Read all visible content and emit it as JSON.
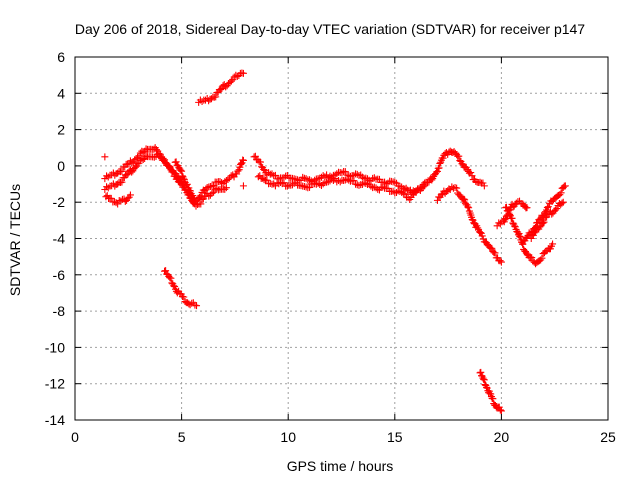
{
  "chart_data": {
    "type": "scatter",
    "title": "Day 206 of 2018, Sidereal Day-to-day VTEC variation (SDTVAR) for receiver p147",
    "xlabel": "GPS time / hours",
    "ylabel": "SDTVAR / TECUs",
    "xlim": [
      0,
      25
    ],
    "ylim": [
      -14,
      6
    ],
    "xticks": [
      0,
      5,
      10,
      15,
      20,
      25
    ],
    "yticks": [
      -14,
      -12,
      -10,
      -8,
      -6,
      -4,
      -2,
      0,
      2,
      4,
      6
    ],
    "grid": true,
    "marker": "+",
    "color": "#ff0000",
    "series": [
      {
        "name": "track-a-upper",
        "points": [
          [
            1.4,
            -0.7
          ],
          [
            1.8,
            -0.5
          ],
          [
            2.2,
            -0.2
          ],
          [
            2.6,
            0.2
          ],
          [
            3.0,
            0.6
          ],
          [
            3.4,
            0.9
          ],
          [
            3.7,
            1.0
          ],
          [
            4.0,
            0.6
          ],
          [
            4.3,
            0.1
          ],
          [
            4.6,
            -0.4
          ],
          [
            4.9,
            -0.9
          ],
          [
            5.2,
            -1.3
          ]
        ]
      },
      {
        "name": "track-a-lower",
        "points": [
          [
            1.4,
            -1.3
          ],
          [
            1.8,
            -1.1
          ],
          [
            2.2,
            -0.8
          ],
          [
            2.6,
            -0.3
          ],
          [
            3.0,
            0.2
          ],
          [
            3.4,
            0.5
          ],
          [
            3.8,
            0.6
          ],
          [
            4.2,
            0.3
          ],
          [
            4.6,
            -0.3
          ],
          [
            5.0,
            -1.0
          ],
          [
            5.3,
            -1.5
          ]
        ]
      },
      {
        "name": "track-a-stub",
        "points": [
          [
            1.45,
            -1.7
          ],
          [
            1.7,
            -1.9
          ],
          [
            2.0,
            -2.0
          ],
          [
            2.3,
            -1.9
          ],
          [
            2.6,
            -1.6
          ]
        ]
      },
      {
        "name": "track-b",
        "points": [
          [
            4.7,
            0.2
          ],
          [
            5.0,
            -0.4
          ],
          [
            5.3,
            -1.2
          ],
          [
            5.6,
            -1.9
          ],
          [
            5.9,
            -1.6
          ],
          [
            6.2,
            -1.2
          ],
          [
            6.5,
            -1.0
          ],
          [
            6.8,
            -0.9
          ],
          [
            7.1,
            -0.8
          ],
          [
            7.4,
            -0.6
          ],
          [
            7.7,
            -0.2
          ],
          [
            7.9,
            0.3
          ]
        ]
      },
      {
        "name": "track-b2",
        "points": [
          [
            5.3,
            -1.6
          ],
          [
            5.6,
            -2.2
          ],
          [
            5.9,
            -2.0
          ],
          [
            6.2,
            -1.6
          ],
          [
            6.5,
            -1.4
          ],
          [
            6.8,
            -1.3
          ],
          [
            7.1,
            -1.2
          ]
        ]
      },
      {
        "name": "track-c",
        "points": [
          [
            5.8,
            3.5
          ],
          [
            6.2,
            3.6
          ],
          [
            6.6,
            3.9
          ],
          [
            7.0,
            4.4
          ],
          [
            7.4,
            4.8
          ],
          [
            7.9,
            5.1
          ]
        ]
      },
      {
        "name": "track-d",
        "points": [
          [
            4.2,
            -5.8
          ],
          [
            4.5,
            -6.3
          ],
          [
            4.8,
            -6.9
          ],
          [
            5.1,
            -7.3
          ],
          [
            5.4,
            -7.6
          ],
          [
            5.7,
            -7.7
          ]
        ]
      },
      {
        "name": "track-e",
        "points": [
          [
            8.4,
            0.5
          ],
          [
            8.7,
            0.1
          ],
          [
            9.0,
            -0.4
          ],
          [
            9.4,
            -0.6
          ],
          [
            9.8,
            -0.6
          ],
          [
            10.2,
            -0.7
          ],
          [
            10.6,
            -0.7
          ],
          [
            11.0,
            -0.8
          ],
          [
            11.4,
            -0.7
          ],
          [
            11.8,
            -0.6
          ],
          [
            12.2,
            -0.5
          ],
          [
            12.6,
            -0.4
          ],
          [
            13.0,
            -0.5
          ],
          [
            13.4,
            -0.6
          ],
          [
            13.8,
            -0.7
          ],
          [
            14.2,
            -0.8
          ],
          [
            14.6,
            -0.9
          ],
          [
            15.0,
            -1.0
          ],
          [
            15.4,
            -1.2
          ],
          [
            15.8,
            -1.5
          ],
          [
            16.2,
            -1.2
          ],
          [
            16.6,
            -0.9
          ],
          [
            17.0,
            -0.2
          ],
          [
            17.3,
            0.5
          ],
          [
            17.6,
            0.9
          ],
          [
            17.9,
            0.6
          ],
          [
            18.2,
            0.1
          ],
          [
            18.5,
            -0.4
          ],
          [
            18.8,
            -0.8
          ],
          [
            19.2,
            -1.1
          ]
        ]
      },
      {
        "name": "track-e-lower",
        "points": [
          [
            8.6,
            -0.6
          ],
          [
            9.0,
            -0.9
          ],
          [
            9.4,
            -1.0
          ],
          [
            9.8,
            -1.0
          ],
          [
            10.2,
            -1.0
          ],
          [
            10.6,
            -1.1
          ],
          [
            11.0,
            -1.1
          ],
          [
            11.4,
            -1.0
          ],
          [
            11.8,
            -0.9
          ],
          [
            12.2,
            -0.8
          ],
          [
            12.6,
            -0.8
          ],
          [
            13.0,
            -0.9
          ],
          [
            13.4,
            -1.0
          ],
          [
            13.8,
            -1.1
          ],
          [
            14.2,
            -1.2
          ],
          [
            14.6,
            -1.3
          ],
          [
            15.0,
            -1.4
          ],
          [
            15.4,
            -1.6
          ],
          [
            15.7,
            -1.8
          ],
          [
            16.0,
            -1.4
          ],
          [
            16.4,
            -1.1
          ]
        ]
      },
      {
        "name": "track-f",
        "points": [
          [
            17.0,
            -1.9
          ],
          [
            17.3,
            -1.5
          ],
          [
            17.6,
            -1.2
          ],
          [
            17.9,
            -1.3
          ],
          [
            18.2,
            -1.8
          ],
          [
            18.5,
            -2.5
          ],
          [
            18.8,
            -3.3
          ],
          [
            19.1,
            -3.9
          ],
          [
            19.4,
            -4.4
          ],
          [
            19.7,
            -4.9
          ],
          [
            20.0,
            -5.3
          ]
        ]
      },
      {
        "name": "track-g",
        "points": [
          [
            19.8,
            -3.3
          ],
          [
            20.1,
            -3.1
          ],
          [
            20.3,
            -2.6
          ],
          [
            20.5,
            -2.2
          ],
          [
            20.7,
            -2.0
          ],
          [
            21.0,
            -2.1
          ],
          [
            21.2,
            -2.3
          ]
        ]
      },
      {
        "name": "track-h",
        "points": [
          [
            20.2,
            -2.3
          ],
          [
            20.5,
            -3.0
          ],
          [
            20.8,
            -3.7
          ],
          [
            21.0,
            -4.4
          ],
          [
            21.3,
            -5.0
          ],
          [
            21.6,
            -5.4
          ],
          [
            21.9,
            -5.0
          ],
          [
            22.2,
            -4.6
          ],
          [
            22.4,
            -4.3
          ]
        ]
      },
      {
        "name": "track-i",
        "points": [
          [
            21.0,
            -4.3
          ],
          [
            21.3,
            -3.8
          ],
          [
            21.6,
            -3.3
          ],
          [
            21.9,
            -2.8
          ],
          [
            22.2,
            -2.2
          ],
          [
            22.5,
            -1.8
          ],
          [
            22.8,
            -1.4
          ],
          [
            23.0,
            -1.1
          ]
        ]
      },
      {
        "name": "track-i2",
        "points": [
          [
            21.4,
            -4.0
          ],
          [
            21.7,
            -3.5
          ],
          [
            22.0,
            -3.0
          ],
          [
            22.3,
            -2.6
          ],
          [
            22.6,
            -2.3
          ],
          [
            22.9,
            -2.0
          ]
        ]
      },
      {
        "name": "track-j",
        "points": [
          [
            19.0,
            -11.4
          ],
          [
            19.2,
            -11.9
          ],
          [
            19.4,
            -12.4
          ],
          [
            19.6,
            -12.9
          ],
          [
            19.8,
            -13.3
          ],
          [
            20.0,
            -13.5
          ]
        ]
      },
      {
        "name": "outliers",
        "points": [
          [
            1.4,
            0.5
          ],
          [
            7.9,
            -1.1
          ]
        ]
      }
    ]
  }
}
